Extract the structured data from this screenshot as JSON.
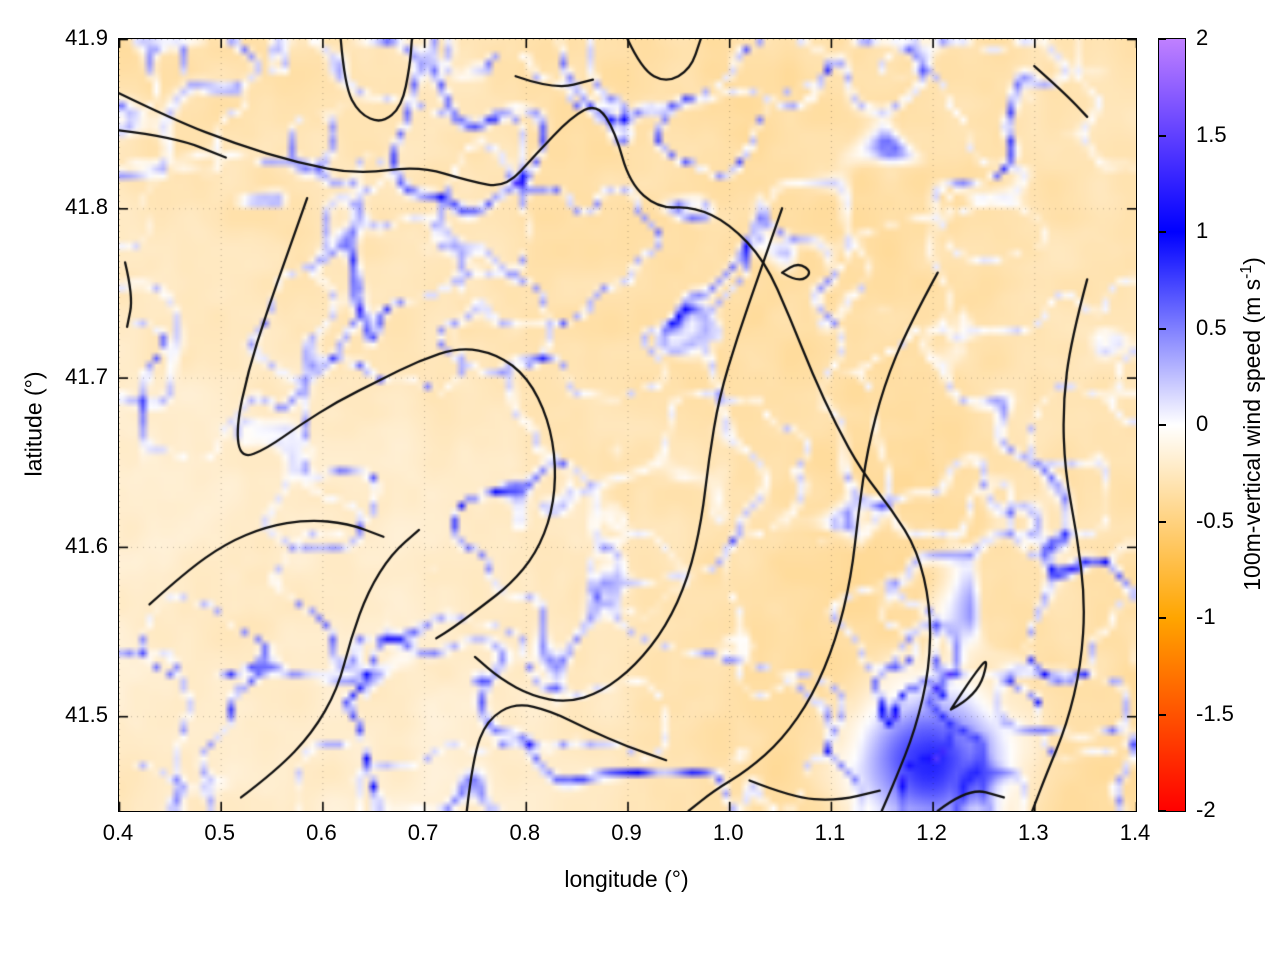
{
  "figure": {
    "background": "#ffffff",
    "border_color": "#000000",
    "grid_style": "dotted",
    "grid_color": "rgba(0,0,0,0.28)"
  },
  "chart_data": {
    "type": "heatmap",
    "title": "",
    "xlabel": "longitude (°)",
    "ylabel": "latitude (°)",
    "xlim": [
      0.4,
      1.4
    ],
    "ylim": [
      41.444,
      41.9
    ],
    "xticks": [
      0.4,
      0.5,
      0.6,
      0.7,
      0.8,
      0.9,
      1.0,
      1.1,
      1.2,
      1.3,
      1.4
    ],
    "xtick_labels": [
      "0.4",
      "0.5",
      "0.6",
      "0.7",
      "0.8",
      "0.9",
      "1.0",
      "1.1",
      "1.2",
      "1.3",
      "1.4"
    ],
    "yticks": [
      41.5,
      41.6,
      41.7,
      41.8,
      41.9
    ],
    "ytick_labels": [
      "41.5",
      "41.6",
      "41.7",
      "41.8",
      "41.9"
    ],
    "grid": "dotted",
    "colorbar": {
      "label_main": "100m-vertical wind speed (m s",
      "label_sup": "-1",
      "label_close": ")",
      "range": [
        -2,
        2
      ],
      "ticks": [
        -2,
        -1.5,
        -1,
        -0.5,
        0,
        0.5,
        1,
        1.5,
        2
      ],
      "tick_labels": [
        "-2",
        "-1.5",
        "-1",
        "-0.5",
        "0",
        "0.5",
        "1",
        "1.5",
        "2"
      ],
      "palette": [
        [
          -2,
          "#ff0000"
        ],
        [
          -1,
          "#ffa500"
        ],
        [
          0,
          "#ffffff"
        ],
        [
          1,
          "#0000ff"
        ],
        [
          2,
          "#c080ff"
        ]
      ]
    },
    "field_summary": "Weakly negative background (about -0.2 to -0.4 m/s, pale orange) crossed by a dense network of narrow positive filaments (about +0.5 to +1.5 m/s, blue); more strongly negative patch in the lower-right quadrant and a strong positive blob near (1.2, 41.47). Black terrain-style contour lines are overlaid.",
    "render_hints": {
      "heatmap_grid": [
        150,
        110
      ],
      "background_level": -0.25,
      "filament_peak": 1.5,
      "blob": {
        "lon": 1.2,
        "lat": 41.47,
        "value": 1.25
      },
      "aspect_units": [
        13.17,
        10
      ]
    },
    "contours": [
      [
        [
          0.4,
          41.868
        ],
        [
          0.455,
          41.852
        ],
        [
          0.515,
          41.838
        ],
        [
          0.575,
          41.827
        ],
        [
          0.635,
          41.82
        ],
        [
          0.695,
          41.825
        ],
        [
          0.745,
          41.816
        ],
        [
          0.78,
          41.812
        ],
        [
          0.81,
          41.832
        ],
        [
          0.845,
          41.854
        ],
        [
          0.87,
          41.862
        ],
        [
          0.888,
          41.845
        ],
        [
          0.902,
          41.815
        ],
        [
          0.93,
          41.8
        ],
        [
          0.965,
          41.801
        ],
        [
          1.0,
          41.791
        ],
        [
          1.035,
          41.769
        ],
        [
          1.06,
          41.735
        ],
        [
          1.082,
          41.702
        ],
        [
          1.105,
          41.672
        ],
        [
          1.13,
          41.645
        ],
        [
          1.16,
          41.622
        ],
        [
          1.185,
          41.598
        ],
        [
          1.198,
          41.565
        ],
        [
          1.197,
          41.528
        ],
        [
          1.183,
          41.492
        ],
        [
          1.163,
          41.462
        ],
        [
          1.15,
          41.444
        ]
      ],
      [
        [
          0.4,
          41.846
        ],
        [
          0.455,
          41.842
        ],
        [
          0.505,
          41.83
        ]
      ],
      [
        [
          1.205,
          41.762
        ],
        [
          1.176,
          41.73
        ],
        [
          1.152,
          41.695
        ],
        [
          1.136,
          41.658
        ],
        [
          1.127,
          41.62
        ],
        [
          1.12,
          41.582
        ],
        [
          1.105,
          41.545
        ],
        [
          1.082,
          41.512
        ],
        [
          1.052,
          41.486
        ],
        [
          1.018,
          41.468
        ],
        [
          0.985,
          41.456
        ],
        [
          0.96,
          41.444
        ]
      ],
      [
        [
          1.052,
          41.8
        ],
        [
          1.03,
          41.762
        ],
        [
          1.008,
          41.724
        ],
        [
          0.99,
          41.688
        ],
        [
          0.98,
          41.652
        ],
        [
          0.973,
          41.616
        ],
        [
          0.96,
          41.582
        ],
        [
          0.938,
          41.553
        ],
        [
          0.908,
          41.53
        ],
        [
          0.874,
          41.514
        ],
        [
          0.84,
          41.508
        ],
        [
          0.806,
          41.512
        ],
        [
          0.775,
          41.522
        ],
        [
          0.75,
          41.535
        ]
      ],
      [
        [
          0.585,
          41.806
        ],
        [
          0.565,
          41.772
        ],
        [
          0.545,
          41.738
        ],
        [
          0.527,
          41.704
        ],
        [
          0.515,
          41.67
        ],
        [
          0.52,
          41.652
        ],
        [
          0.545,
          41.658
        ],
        [
          0.578,
          41.672
        ],
        [
          0.615,
          41.686
        ],
        [
          0.655,
          41.698
        ],
        [
          0.695,
          41.71
        ],
        [
          0.735,
          41.718
        ],
        [
          0.772,
          41.714
        ],
        [
          0.802,
          41.7
        ],
        [
          0.822,
          41.676
        ],
        [
          0.83,
          41.648
        ],
        [
          0.826,
          41.62
        ],
        [
          0.81,
          41.596
        ],
        [
          0.785,
          41.578
        ],
        [
          0.755,
          41.564
        ],
        [
          0.728,
          41.552
        ],
        [
          0.712,
          41.546
        ]
      ],
      [
        [
          0.43,
          41.566
        ],
        [
          0.465,
          41.585
        ],
        [
          0.505,
          41.602
        ],
        [
          0.545,
          41.612
        ],
        [
          0.585,
          41.616
        ],
        [
          0.625,
          41.614
        ],
        [
          0.66,
          41.606
        ]
      ],
      [
        [
          0.52,
          41.452
        ],
        [
          0.555,
          41.468
        ],
        [
          0.59,
          41.49
        ],
        [
          0.615,
          41.516
        ],
        [
          0.628,
          41.546
        ],
        [
          0.645,
          41.574
        ],
        [
          0.668,
          41.596
        ],
        [
          0.695,
          41.61
        ]
      ],
      [
        [
          0.742,
          41.444
        ],
        [
          0.748,
          41.476
        ],
        [
          0.762,
          41.498
        ],
        [
          0.79,
          41.508
        ],
        [
          0.825,
          41.503
        ],
        [
          0.862,
          41.492
        ],
        [
          0.9,
          41.482
        ],
        [
          0.938,
          41.474
        ]
      ],
      [
        [
          1.352,
          41.758
        ],
        [
          1.336,
          41.722
        ],
        [
          1.328,
          41.684
        ],
        [
          1.33,
          41.645
        ],
        [
          1.342,
          41.607
        ],
        [
          1.35,
          41.568
        ],
        [
          1.346,
          41.53
        ],
        [
          1.332,
          41.495
        ],
        [
          1.312,
          41.466
        ],
        [
          1.298,
          41.444
        ]
      ],
      [
        [
          0.618,
          41.9
        ],
        [
          0.622,
          41.872
        ],
        [
          0.636,
          41.856
        ],
        [
          0.658,
          41.85
        ],
        [
          0.678,
          41.86
        ],
        [
          0.686,
          41.884
        ],
        [
          0.688,
          41.9
        ]
      ],
      [
        [
          0.79,
          41.878
        ],
        [
          0.828,
          41.87
        ],
        [
          0.866,
          41.876
        ]
      ],
      [
        [
          0.9,
          41.9
        ],
        [
          0.914,
          41.882
        ],
        [
          0.938,
          41.874
        ],
        [
          0.962,
          41.882
        ],
        [
          0.972,
          41.9
        ]
      ],
      [
        [
          1.3,
          41.884
        ],
        [
          1.33,
          41.868
        ],
        [
          1.352,
          41.854
        ]
      ],
      [
        [
          0.406,
          41.768
        ],
        [
          0.414,
          41.748
        ],
        [
          0.408,
          41.73
        ]
      ],
      [
        [
          1.218,
          41.504
        ],
        [
          1.244,
          41.512
        ],
        [
          1.256,
          41.536
        ],
        [
          1.24,
          41.524
        ],
        [
          1.218,
          41.504
        ]
      ],
      [
        [
          1.02,
          41.462
        ],
        [
          1.062,
          41.452
        ],
        [
          1.105,
          41.45
        ],
        [
          1.148,
          41.456
        ]
      ],
      [
        [
          1.205,
          41.444
        ],
        [
          1.235,
          41.458
        ],
        [
          1.27,
          41.452
        ]
      ],
      [
        [
          1.052,
          41.762
        ],
        [
          1.068,
          41.756
        ],
        [
          1.082,
          41.762
        ],
        [
          1.068,
          41.768
        ],
        [
          1.052,
          41.762
        ]
      ]
    ]
  }
}
